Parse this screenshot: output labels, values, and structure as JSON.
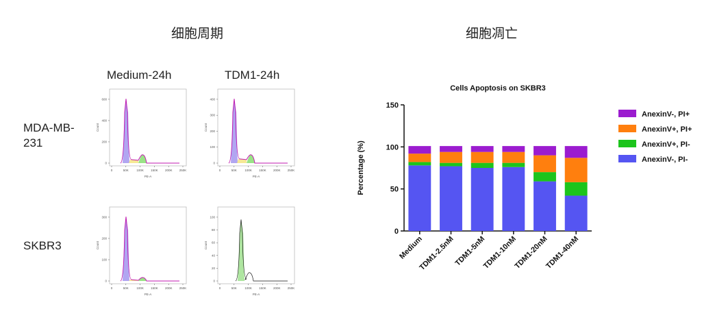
{
  "left_title": "细胞周期",
  "right_title": "细胞凋亡",
  "cell_cycle": {
    "columns": [
      "Medium-24h",
      "TDM1-24h"
    ],
    "rows": [
      "MDA-MB-231",
      "SKBR3"
    ],
    "row_label_lines": [
      [
        "MDA-MB-",
        "231"
      ],
      [
        "SKBR3"
      ]
    ],
    "x_axis_label": "PE-A",
    "y_axis_label": "Count",
    "x_ticks": [
      "0",
      "50K",
      "100K",
      "150K",
      "200K",
      "250K"
    ],
    "panels_y_ticks": [
      [
        "0",
        "200",
        "400",
        "600"
      ],
      [
        "0",
        "100",
        "200",
        "300",
        "400"
      ],
      [
        "0",
        "100",
        "200",
        "300"
      ],
      [
        "0",
        "20",
        "40",
        "60",
        "80",
        "100"
      ]
    ]
  },
  "chart_data": {
    "type": "bar",
    "stacked": true,
    "title": "Cells Apoptosis on SKBR3",
    "xlabel": "",
    "ylabel": "Percentage (%)",
    "ylim": [
      0,
      150
    ],
    "yticks": [
      "0",
      "50",
      "100",
      "150"
    ],
    "categories": [
      "Medium",
      "TDM1-2.5nM",
      "TDM1-5nM",
      "TDM1-10nM",
      "TDM1-20nM",
      "TDM1-40nM"
    ],
    "legend_position": "right",
    "series": [
      {
        "name": "AnexinV-, PI-",
        "color": "#5555f2",
        "values": [
          78,
          77,
          75,
          76,
          59,
          42
        ]
      },
      {
        "name": "AnexinV+, PI-",
        "color": "#1cc41c",
        "values": [
          4,
          4,
          6,
          5,
          11,
          16
        ]
      },
      {
        "name": "AnexinV+, PI+",
        "color": "#ff7f0e",
        "values": [
          10,
          13,
          13,
          13,
          20,
          29
        ]
      },
      {
        "name": "AnexinV-, PI+",
        "color": "#9b1ccf",
        "values": [
          9,
          7,
          7,
          7,
          11,
          14
        ]
      }
    ],
    "legend_order": [
      "AnexinV-, PI+",
      "AnexinV+, PI+",
      "AnexinV+, PI-",
      "AnexinV-, PI-"
    ]
  }
}
